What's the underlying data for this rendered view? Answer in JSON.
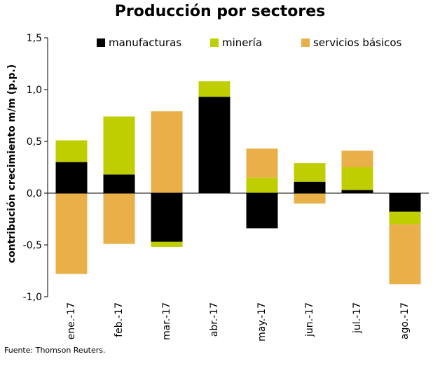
{
  "chart_data": {
    "type": "bar",
    "stacked": true,
    "title": "Producción por sectores",
    "ylabel": "contribución crecimiento m/m (p.p.)",
    "xlabel": "",
    "ylim": [
      -1.0,
      1.5
    ],
    "yticks": [
      "-1,0",
      "-0,5",
      "0,0",
      "0,5",
      "1,0",
      "1,5"
    ],
    "yticks_values": [
      -1.0,
      -0.5,
      0.0,
      0.5,
      1.0,
      1.5
    ],
    "grid": false,
    "legend_position": "top",
    "categories": [
      "ene.-17",
      "feb.-17",
      "mar.-17",
      "abr.-17",
      "may.-17",
      "jun.-17",
      "jul.-17",
      "ago.-17"
    ],
    "series": [
      {
        "name": "manufacturas",
        "color": "#000000",
        "values": [
          0.3,
          0.18,
          -0.47,
          0.93,
          -0.34,
          0.11,
          0.03,
          -0.18
        ]
      },
      {
        "name": "minería",
        "color": "#BFCE00",
        "values": [
          0.21,
          0.56,
          -0.05,
          0.15,
          0.15,
          0.18,
          0.22,
          -0.12
        ]
      },
      {
        "name": "servicios básicos",
        "color": "#E9AF49",
        "values": [
          -0.78,
          -0.49,
          0.79,
          0.0,
          0.28,
          -0.1,
          0.16,
          -0.58
        ]
      }
    ]
  },
  "footer": {
    "source": "Fuente: Thomson Reuters."
  }
}
